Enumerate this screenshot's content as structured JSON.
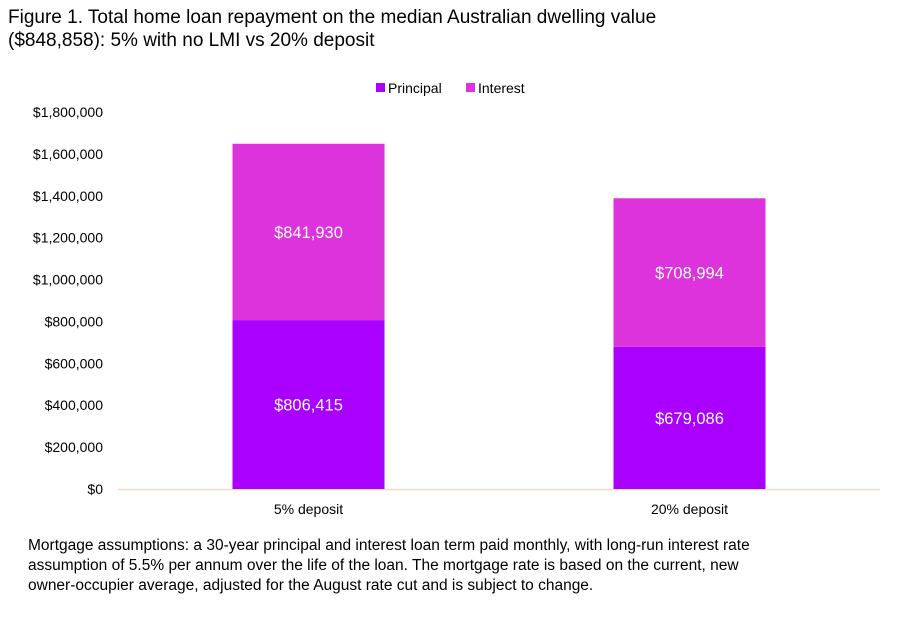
{
  "title_lines": [
    "Figure 1. Total home loan repayment on the median Australian dwelling value",
    "($848,858): 5% with no LMI vs 20% deposit"
  ],
  "note_lines": [
    "Mortgage assumptions: a 30-year principal and interest loan term paid monthly, with long-run interest rate",
    "assumption of 5.5% per annum over the life of the loan. The mortgage rate is based on the current, new",
    "owner-occupier average, adjusted for the August rate cut and is subject to change."
  ],
  "chart_data": {
    "type": "bar",
    "stacked": true,
    "title": "Total home loan repayment on the median Australian dwelling value ($848,858): 5% with no LMI vs 20% deposit",
    "categories": [
      "5% deposit",
      "20% deposit"
    ],
    "series": [
      {
        "name": "Principal",
        "color": "#aa00ff",
        "values": [
          806415,
          679086
        ],
        "labels": [
          "$806,415",
          "$679,086"
        ]
      },
      {
        "name": "Interest",
        "color": "#dd33dd",
        "values": [
          841930,
          708994
        ],
        "labels": [
          "$841,930",
          "$708,994"
        ]
      }
    ],
    "ylim": [
      0,
      1800000
    ],
    "yticks": [
      0,
      200000,
      400000,
      600000,
      800000,
      1000000,
      1200000,
      1400000,
      1600000,
      1800000
    ],
    "ytick_labels": [
      "$0",
      "$200,000",
      "$400,000",
      "$600,000",
      "$800,000",
      "$1,000,000",
      "$1,200,000",
      "$1,400,000",
      "$1,600,000",
      "$1,800,000"
    ],
    "legend_position": "top-center",
    "grid": false,
    "xlabel": "",
    "ylabel": ""
  }
}
